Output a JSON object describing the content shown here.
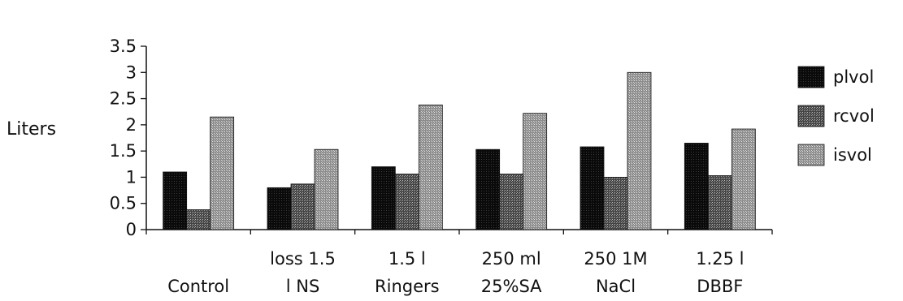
{
  "chart_data": {
    "type": "bar",
    "ylabel": "Liters",
    "xlabel": "",
    "ylim": [
      0,
      3.5
    ],
    "yticks": [
      "0",
      "0.5",
      "1",
      "1.5",
      "2",
      "2.5",
      "3",
      "3.5"
    ],
    "categories": [
      [
        "",
        "Control"
      ],
      [
        "loss 1.5",
        "l NS"
      ],
      [
        "1.5 l",
        "Ringers"
      ],
      [
        "250 ml",
        "25%SA"
      ],
      [
        "250 1M",
        "NaCl"
      ],
      [
        "1.25 l",
        "DBBF"
      ]
    ],
    "series": [
      {
        "name": "plvol",
        "values": [
          1.1,
          0.8,
          1.2,
          1.53,
          1.58,
          1.65
        ],
        "color": "#111111"
      },
      {
        "name": "rcvol",
        "values": [
          0.38,
          0.87,
          1.06,
          1.06,
          1.0,
          1.03
        ],
        "color": "#555555"
      },
      {
        "name": "isvol",
        "values": [
          2.15,
          1.53,
          2.38,
          2.22,
          3.0,
          1.92
        ],
        "color": "#8a8a8a"
      }
    ],
    "legend_position": "right",
    "grid": false
  }
}
